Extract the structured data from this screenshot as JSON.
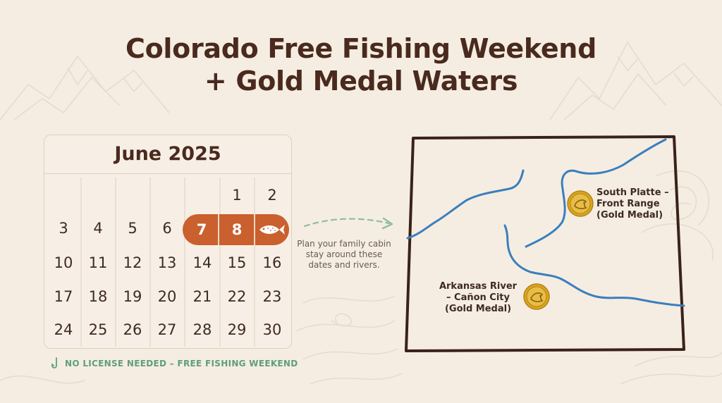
{
  "title": {
    "line1": "Colorado Free Fishing Weekend",
    "line2": "+ Gold Medal Waters"
  },
  "calendar": {
    "month": "June 2025",
    "weeks": [
      [
        "",
        "",
        "",
        "",
        "",
        "1",
        "2"
      ],
      [
        "3",
        "4",
        "5",
        "6",
        "7",
        "8",
        ""
      ],
      [
        "10",
        "11",
        "12",
        "13",
        "14",
        "15",
        "16"
      ],
      [
        "17",
        "18",
        "19",
        "20",
        "21",
        "22",
        "23"
      ],
      [
        "24",
        "25",
        "26",
        "27",
        "28",
        "29",
        "30"
      ]
    ],
    "highlighted_days": [
      "7",
      "8"
    ],
    "highlight_end_icon": "fish-icon",
    "highlight_color": "#c9602e"
  },
  "footer": {
    "icon": "fish-hook-icon",
    "text": "NO LICENSE NEEDED – FREE FISHING WEEKEND",
    "color": "#5f9e7c"
  },
  "plan_note": {
    "lines": [
      "Plan your family cabin",
      "stay around these",
      "dates and rivers."
    ]
  },
  "map": {
    "river_color": "#3a7fbd",
    "locations": [
      {
        "icon": "gold-medal-trout-icon",
        "lines": [
          "South Platte –",
          "Front Range",
          "(Gold Medal)"
        ]
      },
      {
        "icon": "gold-medal-trout-icon",
        "lines": [
          "Arkansas River",
          "– Cañon City",
          "(Gold Medal)"
        ]
      }
    ]
  }
}
